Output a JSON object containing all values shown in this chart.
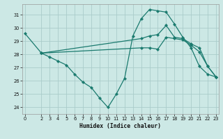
{
  "xlabel": "Humidex (Indice chaleur)",
  "background_color": "#cce8e5",
  "grid_color": "#aaccca",
  "line_color": "#1a7a6e",
  "xlim": [
    -0.3,
    23.3
  ],
  "ylim": [
    23.5,
    31.8
  ],
  "yticks": [
    24,
    25,
    26,
    27,
    28,
    29,
    30,
    31
  ],
  "xticks": [
    0,
    2,
    3,
    4,
    5,
    6,
    7,
    8,
    9,
    10,
    11,
    12,
    13,
    14,
    15,
    16,
    17,
    18,
    19,
    20,
    21,
    22,
    23
  ],
  "lines": [
    {
      "x": [
        0,
        2,
        3,
        4,
        5,
        6,
        7,
        8,
        9,
        10,
        11,
        12,
        13,
        14,
        15,
        16,
        17,
        18,
        19,
        20,
        21,
        22,
        23
      ],
      "y": [
        29.6,
        28.1,
        27.8,
        27.5,
        27.2,
        26.5,
        25.9,
        25.5,
        24.7,
        24.0,
        25.0,
        26.2,
        29.4,
        30.7,
        31.4,
        31.3,
        31.2,
        30.3,
        29.3,
        28.5,
        27.1,
        26.5,
        26.3
      ]
    },
    {
      "x": [
        2,
        14,
        15,
        16,
        17,
        18,
        19,
        20,
        21,
        22,
        23
      ],
      "y": [
        28.1,
        29.2,
        29.4,
        29.5,
        30.2,
        29.3,
        29.2,
        28.8,
        28.5,
        27.1,
        26.3
      ]
    },
    {
      "x": [
        2,
        14,
        15,
        16,
        17,
        18,
        19,
        20,
        21,
        22,
        23
      ],
      "y": [
        28.1,
        28.5,
        28.5,
        28.4,
        29.3,
        29.2,
        29.1,
        28.7,
        28.2,
        27.1,
        26.3
      ]
    }
  ]
}
